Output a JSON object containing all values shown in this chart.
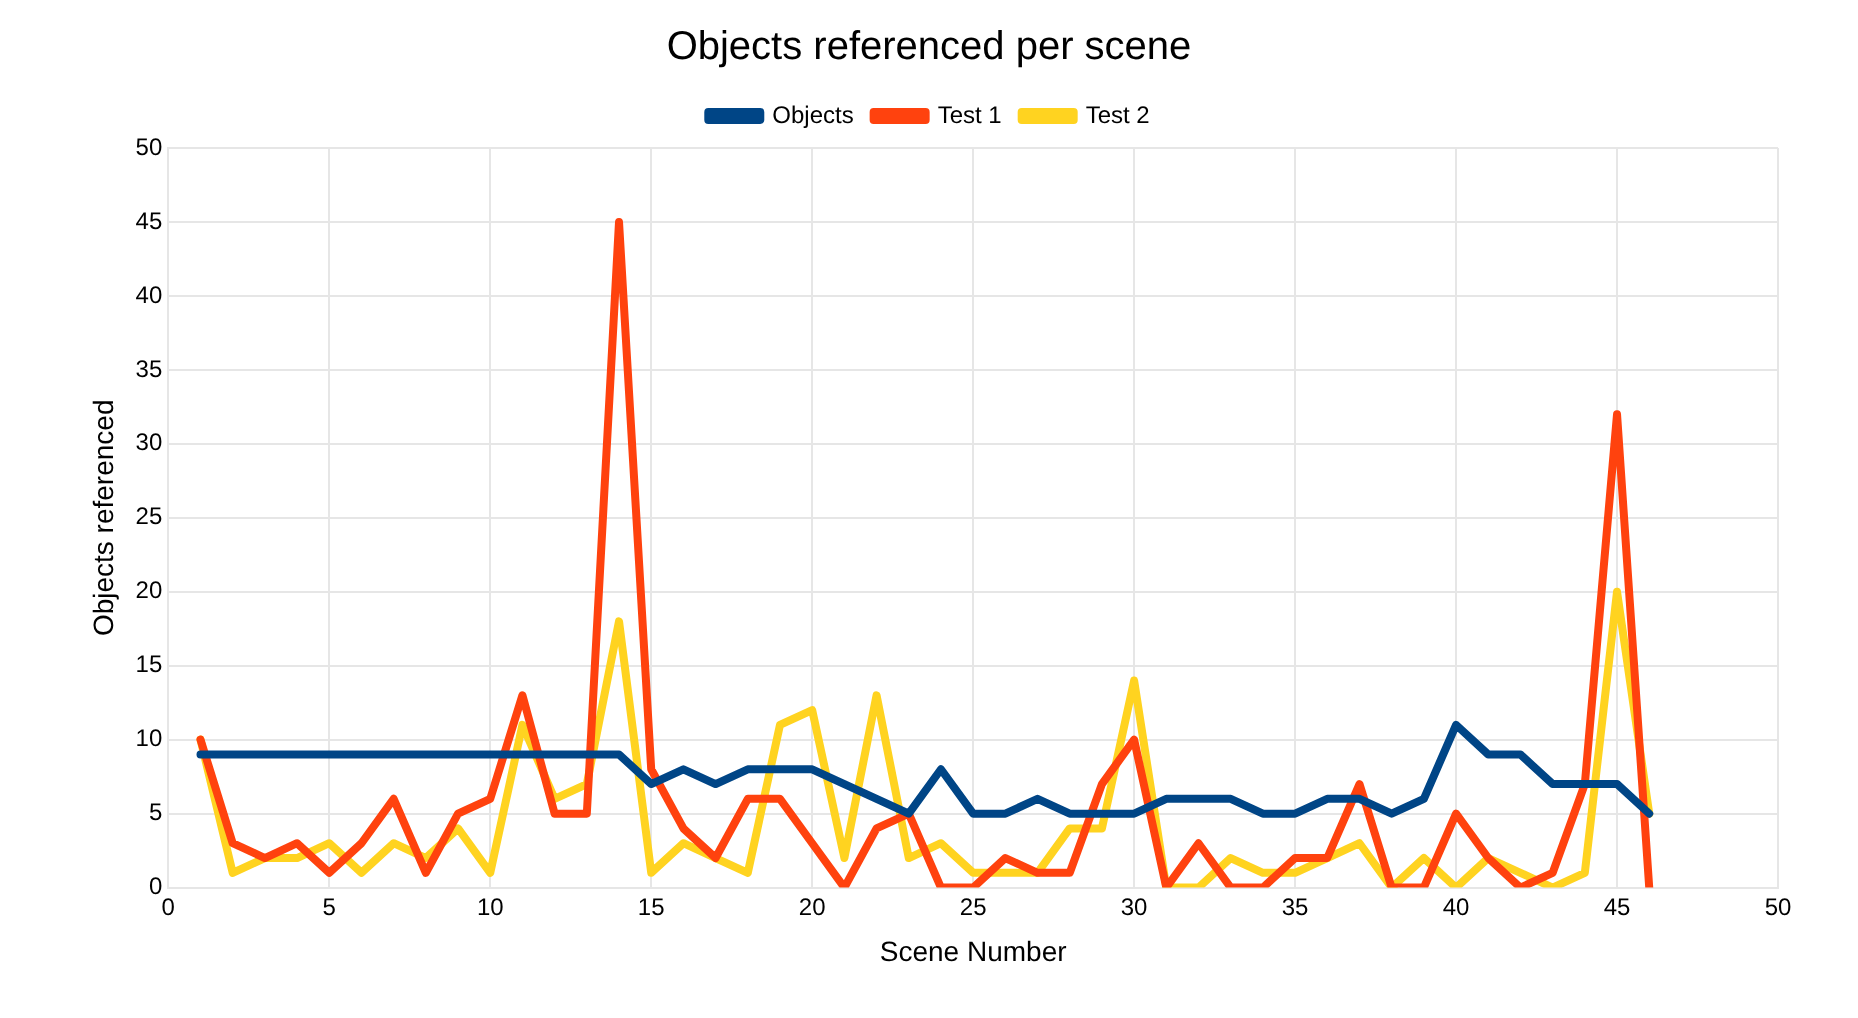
{
  "chart_data": {
    "type": "line",
    "title": "Objects referenced per scene",
    "xlabel": "Scene Number",
    "ylabel": "Objects referenced",
    "x": [
      1,
      2,
      3,
      4,
      5,
      6,
      7,
      8,
      9,
      10,
      11,
      12,
      13,
      14,
      15,
      16,
      17,
      18,
      19,
      20,
      21,
      22,
      23,
      24,
      25,
      26,
      27,
      28,
      29,
      30,
      31,
      32,
      33,
      34,
      35,
      36,
      37,
      38,
      39,
      40,
      41,
      42,
      43,
      44,
      45,
      46
    ],
    "series": [
      {
        "name": "Objects",
        "color": "#004586",
        "values": [
          9,
          9,
          9,
          9,
          9,
          9,
          9,
          9,
          9,
          9,
          9,
          9,
          9,
          9,
          7,
          8,
          7,
          8,
          8,
          8,
          7,
          6,
          5,
          8,
          5,
          5,
          6,
          5,
          5,
          5,
          6,
          6,
          6,
          5,
          5,
          6,
          6,
          5,
          6,
          11,
          9,
          9,
          7,
          7,
          7,
          5
        ]
      },
      {
        "name": "Test 1",
        "color": "#ff420e",
        "values": [
          10,
          3,
          2,
          3,
          1,
          3,
          6,
          1,
          5,
          6,
          13,
          5,
          5,
          45,
          8,
          4,
          2,
          6,
          6,
          3,
          0,
          4,
          5,
          0,
          0,
          2,
          1,
          1,
          7,
          10,
          0,
          3,
          0,
          0,
          2,
          2,
          7,
          0,
          0,
          5,
          2,
          0,
          1,
          7,
          32,
          0
        ]
      },
      {
        "name": "Test 2",
        "color": "#ffd320",
        "values": [
          10,
          1,
          2,
          2,
          3,
          1,
          3,
          2,
          4,
          1,
          11,
          6,
          7,
          18,
          1,
          3,
          2,
          1,
          11,
          12,
          2,
          13,
          2,
          3,
          1,
          1,
          1,
          4,
          4,
          14,
          0,
          0,
          2,
          1,
          1,
          2,
          3,
          0,
          2,
          0,
          2,
          1,
          0,
          1,
          20,
          5
        ]
      }
    ],
    "xlim": [
      0,
      50
    ],
    "xticks": [
      0,
      5,
      10,
      15,
      20,
      25,
      30,
      35,
      40,
      45,
      50
    ],
    "ylim": [
      0,
      50
    ],
    "yticks": [
      0,
      5,
      10,
      15,
      20,
      25,
      30,
      35,
      40,
      45,
      50
    ],
    "grid": true,
    "legend": "top",
    "marker": "none",
    "line_style": "solid"
  }
}
